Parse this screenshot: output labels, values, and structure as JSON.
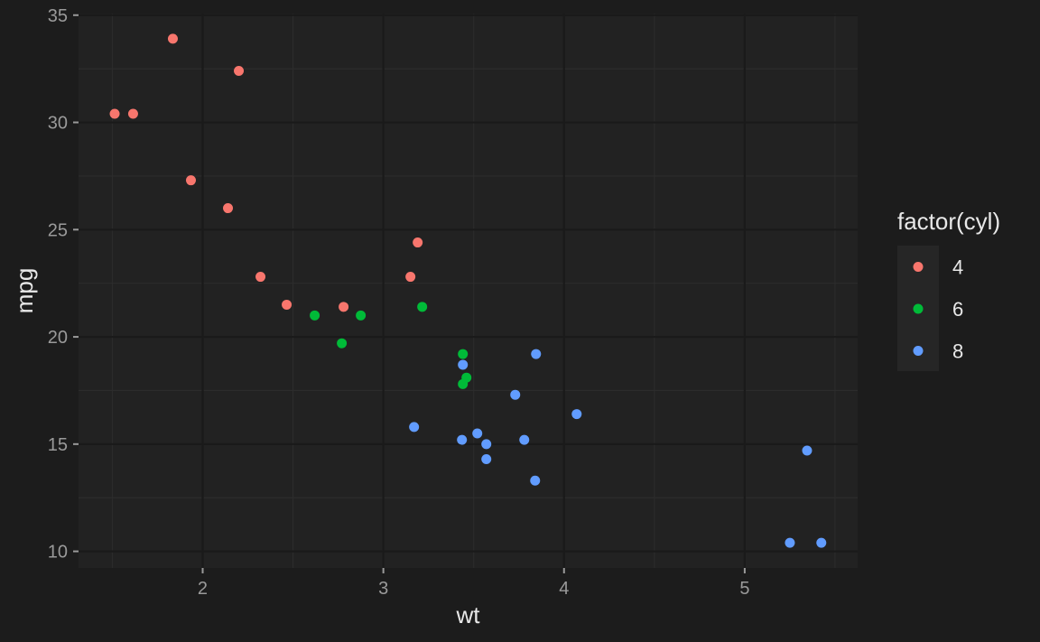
{
  "chart_data": {
    "type": "scatter",
    "xlabel": "wt",
    "ylabel": "mpg",
    "xlim": [
      1.313,
      5.625
    ],
    "ylim": [
      9.225,
      35.075
    ],
    "x_ticks": [
      2,
      3,
      4,
      5
    ],
    "y_ticks": [
      10,
      15,
      20,
      25,
      30,
      35
    ],
    "grid": true,
    "legend": {
      "title": "factor(cyl)",
      "position": "right"
    },
    "series": [
      {
        "name": "4",
        "color": "#f8766d",
        "points": [
          {
            "x": 2.32,
            "y": 22.8
          },
          {
            "x": 3.19,
            "y": 24.4
          },
          {
            "x": 3.15,
            "y": 22.8
          },
          {
            "x": 2.2,
            "y": 32.4
          },
          {
            "x": 1.615,
            "y": 30.4
          },
          {
            "x": 1.835,
            "y": 33.9
          },
          {
            "x": 2.465,
            "y": 21.5
          },
          {
            "x": 1.935,
            "y": 27.3
          },
          {
            "x": 2.14,
            "y": 26.0
          },
          {
            "x": 1.513,
            "y": 30.4
          },
          {
            "x": 2.78,
            "y": 21.4
          }
        ]
      },
      {
        "name": "6",
        "color": "#00ba38",
        "points": [
          {
            "x": 2.62,
            "y": 21.0
          },
          {
            "x": 2.875,
            "y": 21.0
          },
          {
            "x": 3.215,
            "y": 21.4
          },
          {
            "x": 3.46,
            "y": 18.1
          },
          {
            "x": 3.44,
            "y": 19.2
          },
          {
            "x": 3.44,
            "y": 17.8
          },
          {
            "x": 2.77,
            "y": 19.7
          }
        ]
      },
      {
        "name": "8",
        "color": "#619cff",
        "points": [
          {
            "x": 3.44,
            "y": 18.7
          },
          {
            "x": 3.57,
            "y": 14.3
          },
          {
            "x": 4.07,
            "y": 16.4
          },
          {
            "x": 3.73,
            "y": 17.3
          },
          {
            "x": 3.78,
            "y": 15.2
          },
          {
            "x": 5.25,
            "y": 10.4
          },
          {
            "x": 5.424,
            "y": 10.4
          },
          {
            "x": 5.345,
            "y": 14.7
          },
          {
            "x": 3.52,
            "y": 15.5
          },
          {
            "x": 3.435,
            "y": 15.2
          },
          {
            "x": 3.84,
            "y": 13.3
          },
          {
            "x": 3.845,
            "y": 19.2
          },
          {
            "x": 3.17,
            "y": 15.8
          },
          {
            "x": 3.57,
            "y": 15.0
          }
        ]
      }
    ]
  },
  "colors": {
    "background": "#1c1c1c",
    "panel": "#222222",
    "grid_major": "#1a1a1a",
    "grid_minor": "#2c2c2c",
    "legend_key_bg": "#262626"
  }
}
